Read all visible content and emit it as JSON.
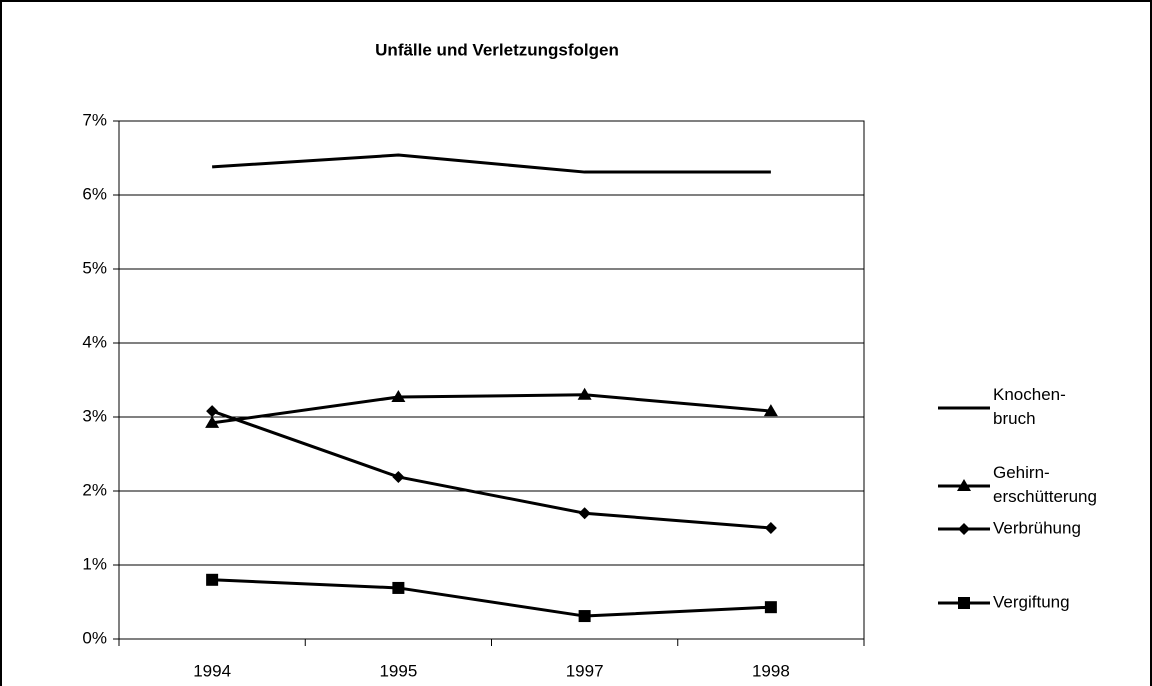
{
  "chart_data": {
    "type": "line",
    "title": "Unfälle und Verletzungsfolgen",
    "categories": [
      "1994",
      "1995",
      "1997",
      "1998"
    ],
    "series": [
      {
        "name": "Knochen-bruch",
        "color": "#000000",
        "marker": "none",
        "values": [
          6.38,
          6.54,
          6.31,
          6.31
        ]
      },
      {
        "name": "Gehirn-erschütterung",
        "color": "#000000",
        "marker": "triangle",
        "values": [
          2.92,
          3.27,
          3.3,
          3.08
        ]
      },
      {
        "name": "Verbrühung",
        "color": "#000000",
        "marker": "diamond",
        "values": [
          3.08,
          2.19,
          1.7,
          1.5
        ]
      },
      {
        "name": "Vergiftung",
        "color": "#000000",
        "marker": "square",
        "values": [
          0.8,
          0.69,
          0.31,
          0.43
        ]
      }
    ],
    "ylim": [
      0,
      7
    ],
    "yticks": [
      {
        "value": 0,
        "label": "0%"
      },
      {
        "value": 1,
        "label": "1%"
      },
      {
        "value": 2,
        "label": "2%"
      },
      {
        "value": 3,
        "label": "3%"
      },
      {
        "value": 4,
        "label": "4%"
      },
      {
        "value": 5,
        "label": "5%"
      },
      {
        "value": 6,
        "label": "6%"
      },
      {
        "value": 7,
        "label": "7%"
      }
    ],
    "grid": true,
    "legend": "right"
  }
}
